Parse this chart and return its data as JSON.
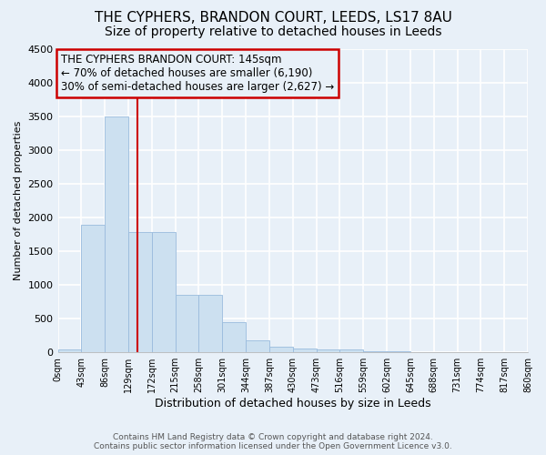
{
  "title": "THE CYPHERS, BRANDON COURT, LEEDS, LS17 8AU",
  "subtitle": "Size of property relative to detached houses in Leeds",
  "xlabel": "Distribution of detached houses by size in Leeds",
  "ylabel": "Number of detached properties",
  "footer_line1": "Contains HM Land Registry data © Crown copyright and database right 2024.",
  "footer_line2": "Contains public sector information licensed under the Open Government Licence v3.0.",
  "bin_edges": [
    0,
    43,
    86,
    129,
    172,
    215,
    258,
    301,
    344,
    387,
    430,
    473,
    516,
    559,
    602,
    645,
    688,
    731,
    774,
    817,
    860
  ],
  "bar_heights": [
    40,
    1900,
    3500,
    1780,
    1780,
    850,
    850,
    450,
    175,
    90,
    60,
    50,
    40,
    20,
    10,
    8,
    5,
    4,
    3,
    2
  ],
  "bar_color": "#cce0f0",
  "bar_edgecolor": "#99bbdd",
  "property_size": 145,
  "vline_color": "#cc0000",
  "annotation_line1": "THE CYPHERS BRANDON COURT: 145sqm",
  "annotation_line2": "← 70% of detached houses are smaller (6,190)",
  "annotation_line3": "30% of semi-detached houses are larger (2,627) →",
  "annotation_box_color": "#cc0000",
  "ylim": [
    0,
    4500
  ],
  "yticks": [
    0,
    500,
    1000,
    1500,
    2000,
    2500,
    3000,
    3500,
    4000,
    4500
  ],
  "bg_color": "#e8f0f8",
  "grid_color": "#ffffff",
  "title_fontsize": 11,
  "subtitle_fontsize": 10,
  "annotation_fontsize": 8.5
}
